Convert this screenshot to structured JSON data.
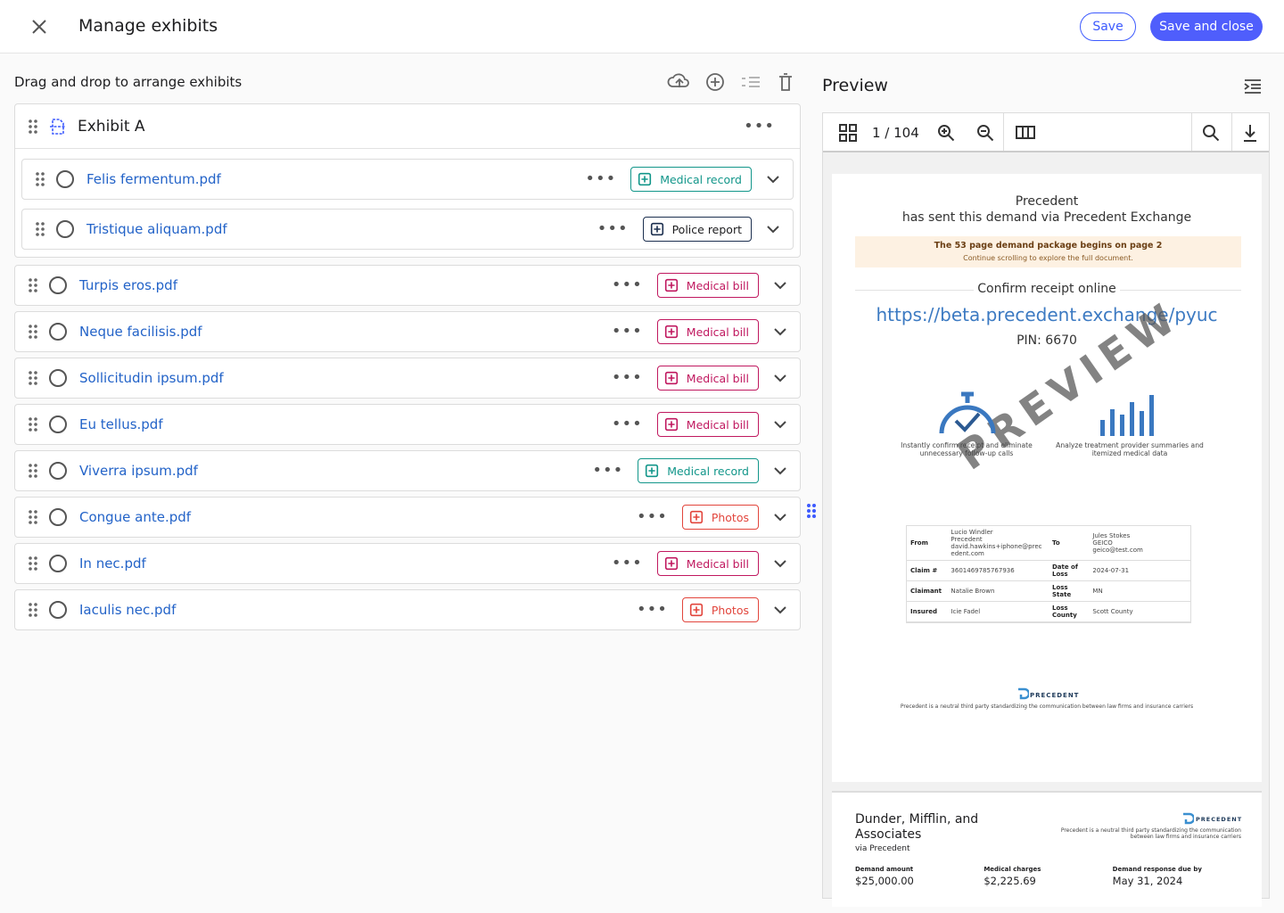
{
  "header": {
    "title": "Manage exhibits",
    "save": "Save",
    "save_and_close": "Save and close"
  },
  "exhibits": {
    "heading": "Drag and drop to arrange exhibits",
    "groups": [
      {
        "name": "Exhibit A",
        "files": [
          {
            "name": "Felis fermentum.pdf",
            "tag": "Medical record",
            "color": "#12968a"
          },
          {
            "name": "Tristique aliquam.pdf",
            "tag": "Police report",
            "color": "#1c2f4f"
          }
        ]
      }
    ],
    "files": [
      {
        "name": "Turpis eros.pdf",
        "tag": "Medical bill",
        "color": "#c0185f"
      },
      {
        "name": "Neque facilisis.pdf",
        "tag": "Medical bill",
        "color": "#c0185f"
      },
      {
        "name": "Sollicitudin ipsum.pdf",
        "tag": "Medical bill",
        "color": "#c0185f"
      },
      {
        "name": "Eu tellus.pdf",
        "tag": "Medical bill",
        "color": "#c0185f"
      },
      {
        "name": "Viverra ipsum.pdf",
        "tag": "Medical record",
        "color": "#12968a"
      },
      {
        "name": "Congue ante.pdf",
        "tag": "Photos",
        "color": "#e2453c"
      },
      {
        "name": "In nec.pdf",
        "tag": "Medical bill",
        "color": "#c0185f"
      },
      {
        "name": "Iaculis nec.pdf",
        "tag": "Photos",
        "color": "#e2453c"
      }
    ]
  },
  "preview": {
    "title": "Preview",
    "page_indicator": "1 / 104",
    "page1": {
      "sender": "Precedent",
      "sent_via": "has sent this demand via Precedent Exchange",
      "notice": "The 53 page demand package begins on page 2",
      "notice_sub": "Continue scrolling to explore the full document.",
      "confirm": "Confirm receipt online",
      "link": "https://beta.precedent.exchange/pyuc",
      "pin": "PIN: 6670",
      "watermark": "PREVIEW",
      "features": [
        "Instantly confirm receipt and eliminate unnecessary follow-up calls",
        "Analyze treatment provider summaries and itemized medical data"
      ],
      "details": [
        [
          {
            "label": "From",
            "lines": [
              "Lucio Windler",
              "Precedent",
              "david.hawkins+iphone@precedent.com"
            ]
          },
          {
            "label": "To",
            "lines": [
              "Jules Stokes",
              "GEICO",
              "geico@test.com"
            ]
          }
        ],
        [
          {
            "label": "Claim #",
            "lines": [
              "3601469785767936"
            ]
          },
          {
            "label": "Date of Loss",
            "lines": [
              "2024-07-31"
            ]
          }
        ],
        [
          {
            "label": "Claimant",
            "lines": [
              "Natalie Brown"
            ]
          },
          {
            "label": "Loss State",
            "lines": [
              "MN"
            ]
          }
        ],
        [
          {
            "label": "Insured",
            "lines": [
              "Icie Fadel"
            ]
          },
          {
            "label": "Loss County",
            "lines": [
              "Scott County"
            ]
          }
        ]
      ],
      "brand": "PRECEDENT",
      "tagline": "Precedent is a neutral third party standardizing the communication between law firms and insurance carriers"
    },
    "page2": {
      "firm": "Dunder, Mifflin, and Associates",
      "via": "via Precedent",
      "brand": "PRECEDENT",
      "tagline": "Precedent is a neutral third party standardizing the communication between law firms and insurance carriers",
      "amounts": [
        {
          "label": "Demand amount",
          "value": "$25,000.00"
        },
        {
          "label": "Medical charges",
          "value": "$2,225.69"
        },
        {
          "label": "Demand response due by",
          "value": "May 31, 2024"
        }
      ]
    }
  }
}
